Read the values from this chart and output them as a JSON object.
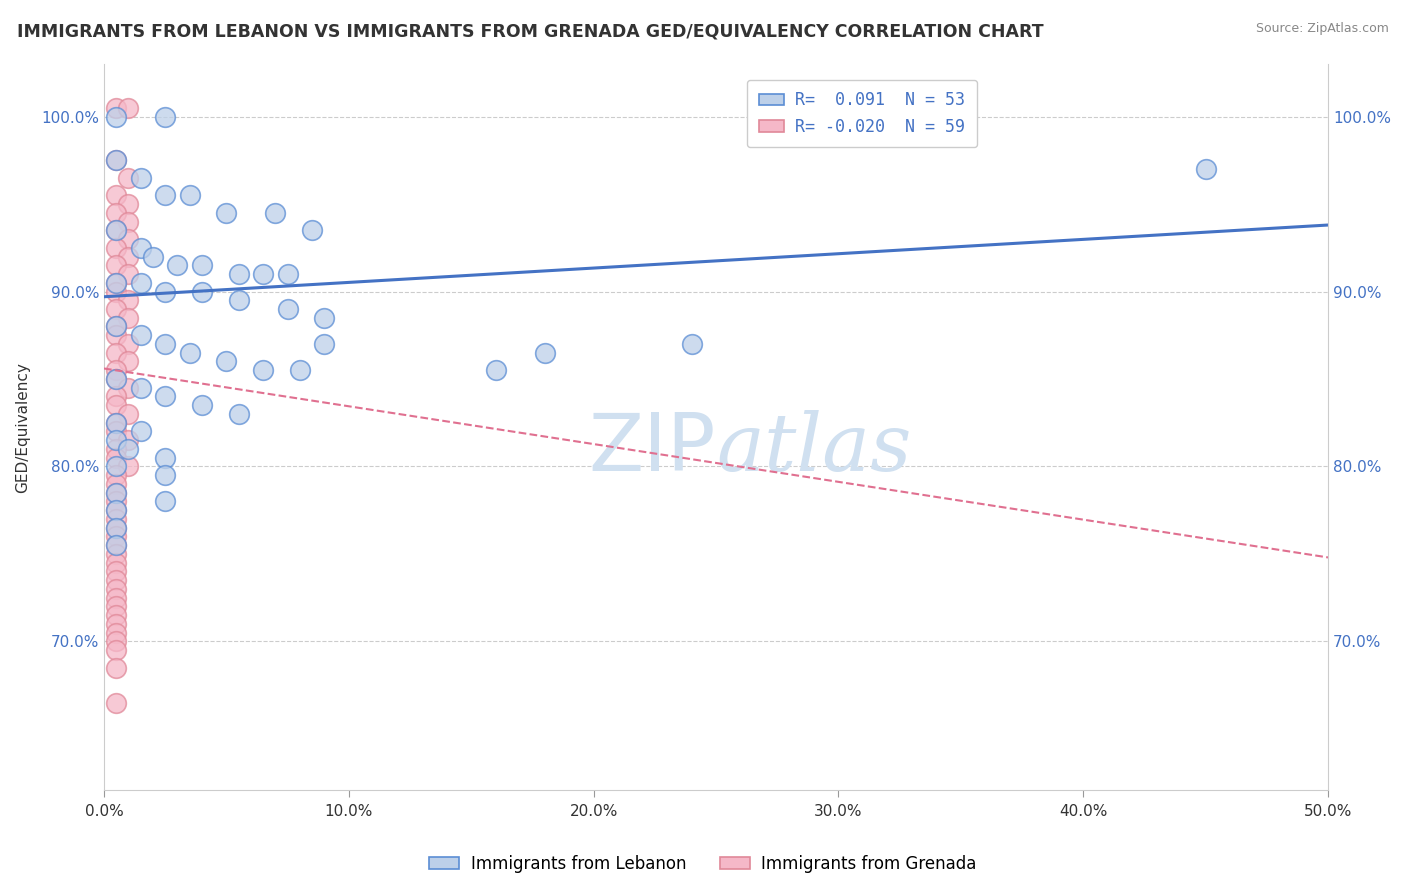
{
  "title": "IMMIGRANTS FROM LEBANON VS IMMIGRANTS FROM GRENADA GED/EQUIVALENCY CORRELATION CHART",
  "source": "Source: ZipAtlas.com",
  "ylabel": "GED/Equivalency",
  "xmin": 0.0,
  "xmax": 0.5,
  "ymin": 0.615,
  "ymax": 1.03,
  "yticks": [
    0.7,
    0.8,
    0.9,
    1.0
  ],
  "ytick_labels": [
    "70.0%",
    "80.0%",
    "90.0%",
    "100.0%"
  ],
  "xticks": [
    0.0,
    0.1,
    0.2,
    0.3,
    0.4,
    0.5
  ],
  "xtick_labels": [
    "0.0%",
    "10.0%",
    "20.0%",
    "30.0%",
    "40.0%",
    "50.0%"
  ],
  "legend_R_blue": " 0.091",
  "legend_N_blue": "53",
  "legend_R_pink": "-0.020",
  "legend_N_pink": "59",
  "blue_fill": "#bdd0e9",
  "blue_edge": "#5b8dd4",
  "pink_fill": "#f5b8c8",
  "pink_edge": "#e08898",
  "blue_line_color": "#4472c4",
  "pink_line_color": "#e07090",
  "watermark_color": "#d0e0f0",
  "blue_x": [
    0.005,
    0.025,
    0.005,
    0.015,
    0.025,
    0.035,
    0.05,
    0.07,
    0.085,
    0.005,
    0.015,
    0.02,
    0.03,
    0.04,
    0.055,
    0.065,
    0.075,
    0.005,
    0.015,
    0.025,
    0.04,
    0.055,
    0.075,
    0.09,
    0.005,
    0.015,
    0.025,
    0.035,
    0.05,
    0.065,
    0.08,
    0.005,
    0.015,
    0.025,
    0.04,
    0.055,
    0.005,
    0.015,
    0.09,
    0.18,
    0.005,
    0.01,
    0.025,
    0.16,
    0.005,
    0.025,
    0.005,
    0.025,
    0.24,
    0.005,
    0.45,
    0.005,
    0.005
  ],
  "blue_y": [
    1.0,
    1.0,
    0.975,
    0.965,
    0.955,
    0.955,
    0.945,
    0.945,
    0.935,
    0.935,
    0.925,
    0.92,
    0.915,
    0.915,
    0.91,
    0.91,
    0.91,
    0.905,
    0.905,
    0.9,
    0.9,
    0.895,
    0.89,
    0.885,
    0.88,
    0.875,
    0.87,
    0.865,
    0.86,
    0.855,
    0.855,
    0.85,
    0.845,
    0.84,
    0.835,
    0.83,
    0.825,
    0.82,
    0.87,
    0.865,
    0.815,
    0.81,
    0.805,
    0.855,
    0.8,
    0.795,
    0.785,
    0.78,
    0.87,
    0.775,
    0.97,
    0.765,
    0.755
  ],
  "pink_x": [
    0.005,
    0.01,
    0.005,
    0.01,
    0.005,
    0.01,
    0.005,
    0.01,
    0.005,
    0.01,
    0.005,
    0.01,
    0.005,
    0.01,
    0.005,
    0.005,
    0.01,
    0.005,
    0.01,
    0.005,
    0.005,
    0.01,
    0.005,
    0.01,
    0.005,
    0.005,
    0.01,
    0.005,
    0.005,
    0.01,
    0.005,
    0.005,
    0.01,
    0.005,
    0.005,
    0.01,
    0.005,
    0.005,
    0.005,
    0.005,
    0.005,
    0.005,
    0.005,
    0.005,
    0.005,
    0.005,
    0.005,
    0.005,
    0.005,
    0.005,
    0.005,
    0.005,
    0.005,
    0.005,
    0.005,
    0.005,
    0.005,
    0.005,
    0.005
  ],
  "pink_y": [
    1.005,
    1.005,
    0.975,
    0.965,
    0.955,
    0.95,
    0.945,
    0.94,
    0.935,
    0.93,
    0.925,
    0.92,
    0.915,
    0.91,
    0.905,
    0.9,
    0.895,
    0.89,
    0.885,
    0.88,
    0.875,
    0.87,
    0.865,
    0.86,
    0.855,
    0.85,
    0.845,
    0.84,
    0.835,
    0.83,
    0.825,
    0.82,
    0.815,
    0.81,
    0.805,
    0.8,
    0.795,
    0.79,
    0.785,
    0.78,
    0.775,
    0.77,
    0.765,
    0.76,
    0.755,
    0.75,
    0.745,
    0.74,
    0.735,
    0.73,
    0.725,
    0.72,
    0.715,
    0.71,
    0.705,
    0.7,
    0.695,
    0.685,
    0.665
  ],
  "blue_line_x": [
    0.0,
    0.5
  ],
  "blue_line_y": [
    0.897,
    0.938
  ],
  "pink_line_x": [
    0.0,
    0.5
  ],
  "pink_line_y": [
    0.856,
    0.748
  ]
}
